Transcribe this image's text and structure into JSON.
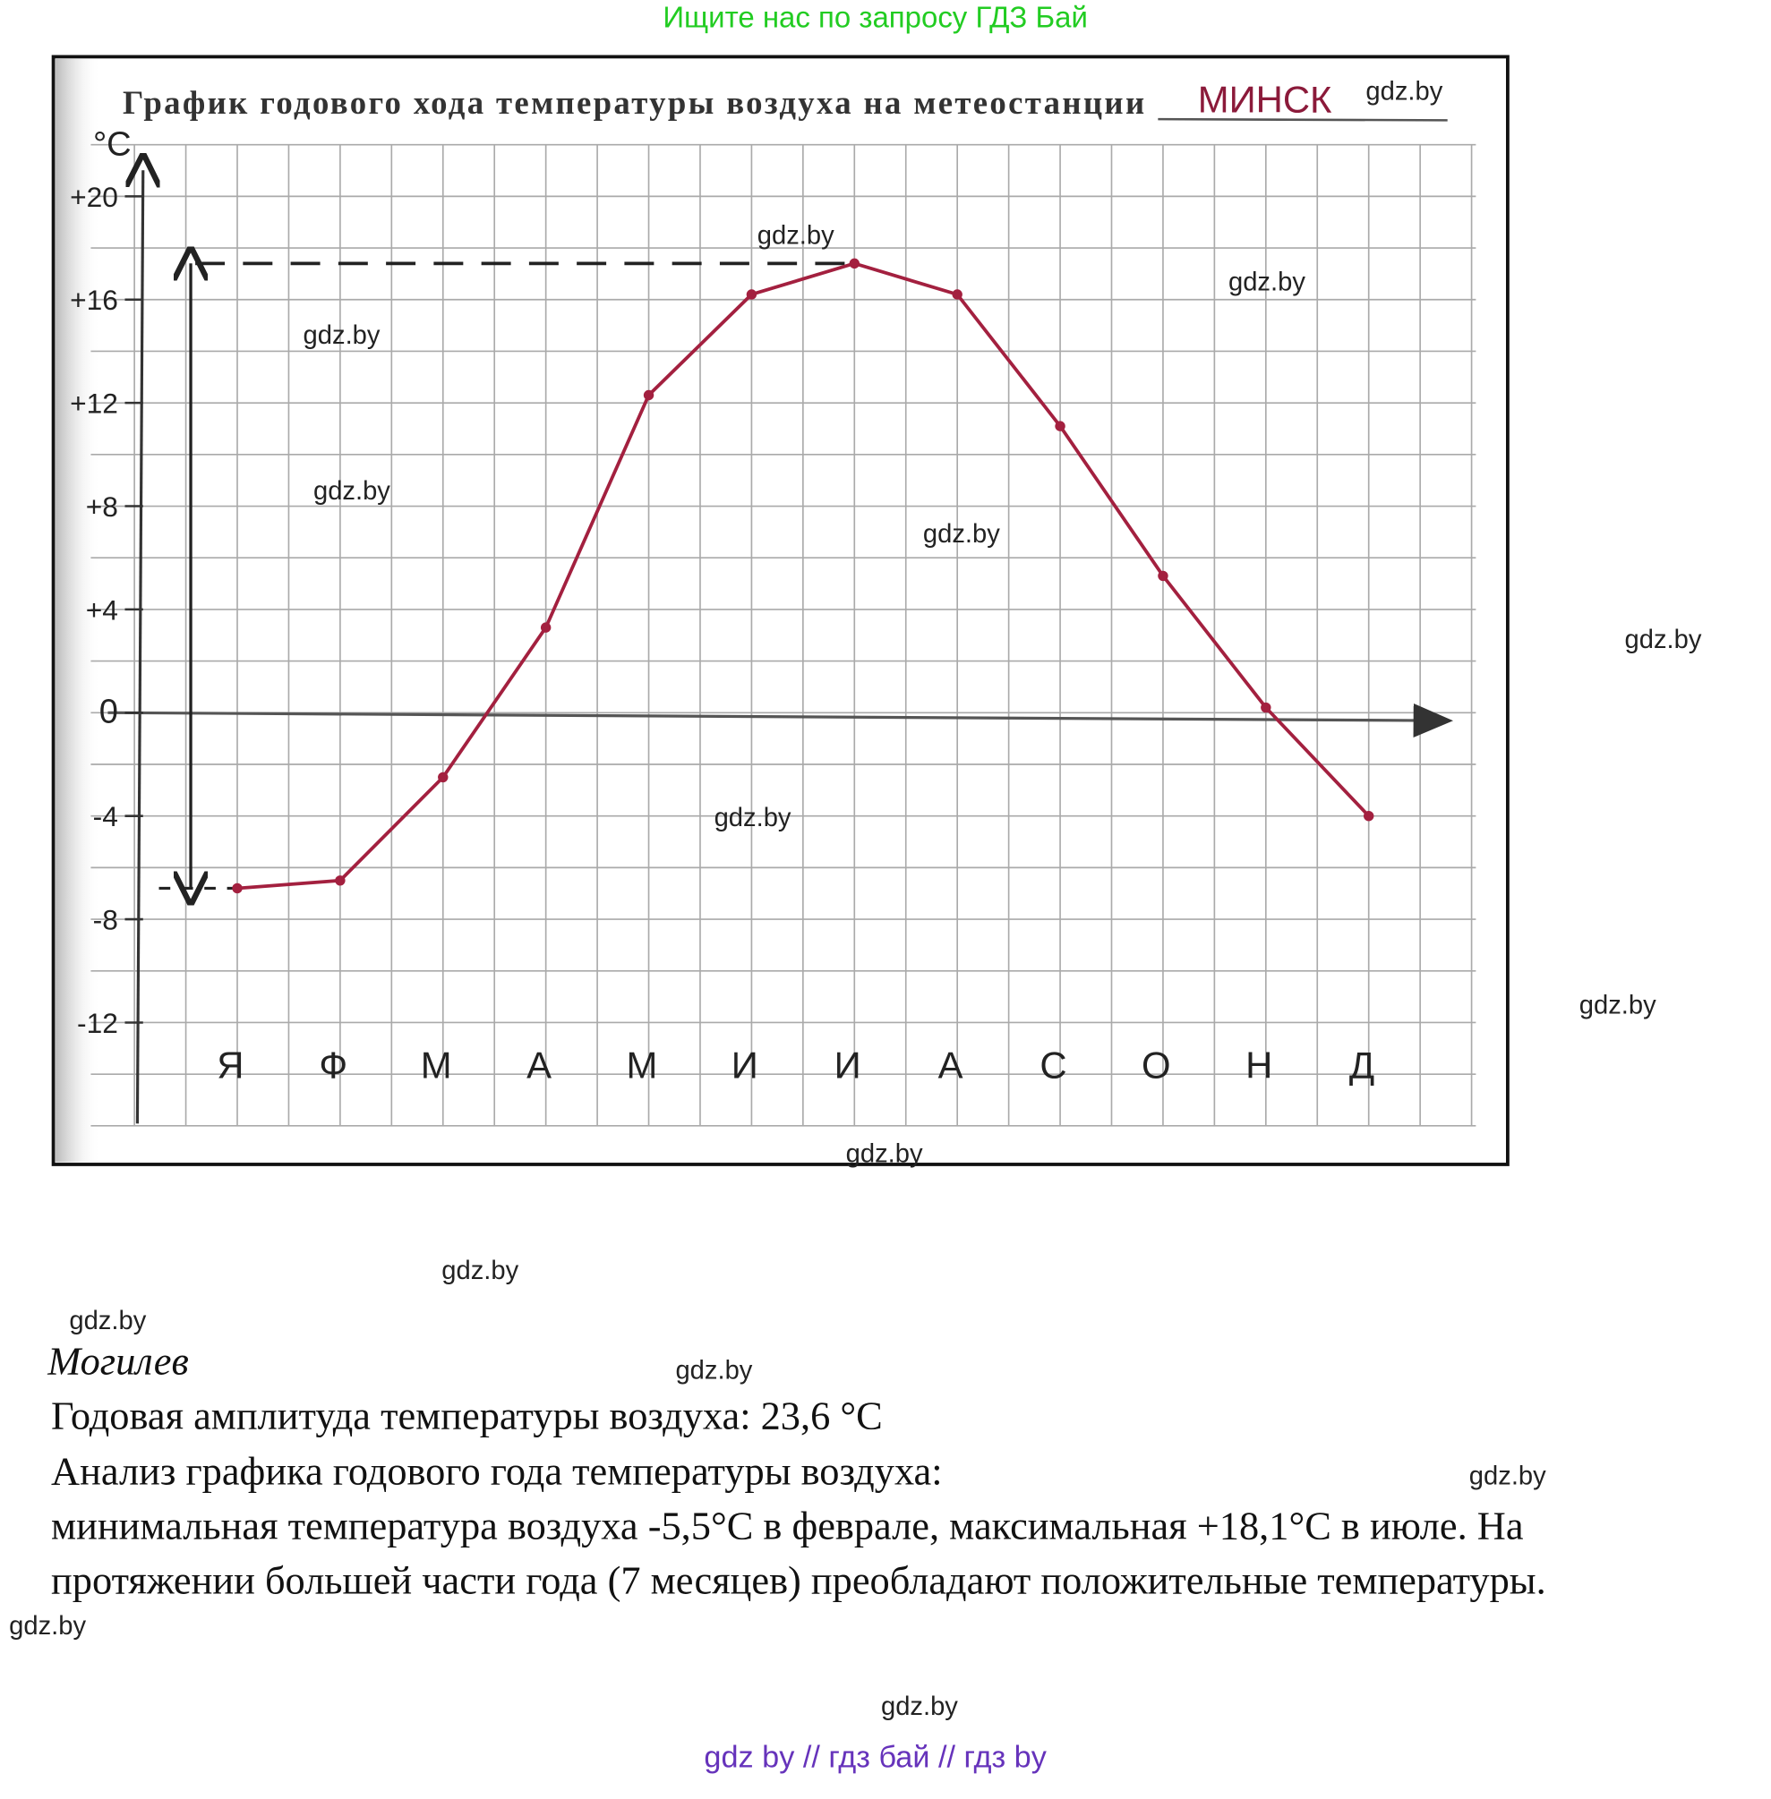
{
  "banner": "Ищите нас по запросу ГДЗ Бай",
  "chart_data": {
    "type": "line",
    "title": "График годового хода температуры воздуха на метеостанции",
    "station": "МИНСК",
    "ylabel": "°C",
    "categories": [
      "Я",
      "Ф",
      "М",
      "А",
      "М",
      "И",
      "И",
      "А",
      "С",
      "О",
      "Н",
      "Д"
    ],
    "values": [
      -6.8,
      -6.5,
      -2.5,
      3.3,
      12.3,
      16.2,
      17.4,
      16.2,
      11.1,
      5.3,
      0.2,
      -4.0
    ],
    "yticks": [
      20,
      16,
      12,
      8,
      4,
      0,
      -4,
      -8,
      -12
    ],
    "ytick_labels": [
      "+20",
      "+16",
      "+12",
      "+8",
      "+4",
      "0",
      "-4",
      "-8",
      "-12"
    ],
    "ylim": [
      -16,
      22
    ],
    "grid": true,
    "line_color": "#a3203f",
    "annotations": {
      "max_dashed_line": 17.4,
      "amplitude_arrow": [
        -6.8,
        17.4
      ]
    }
  },
  "watermark": "gdz.by",
  "answer": {
    "city": "Могилев",
    "amplitude": "Годовая амплитуда температуры воздуха: 23,6 °С",
    "analysis_heading": "Анализ графика годового года температуры воздуха:",
    "analysis_line1": "минимальная температура воздуха -5,5°С в феврале, максимальная +18,1°С в июле. На",
    "analysis_line2": "протяжении большей части года (7 месяцев) преобладают положительные температуры."
  },
  "footer": "gdz by  //  гдз бай  //  гдз by"
}
